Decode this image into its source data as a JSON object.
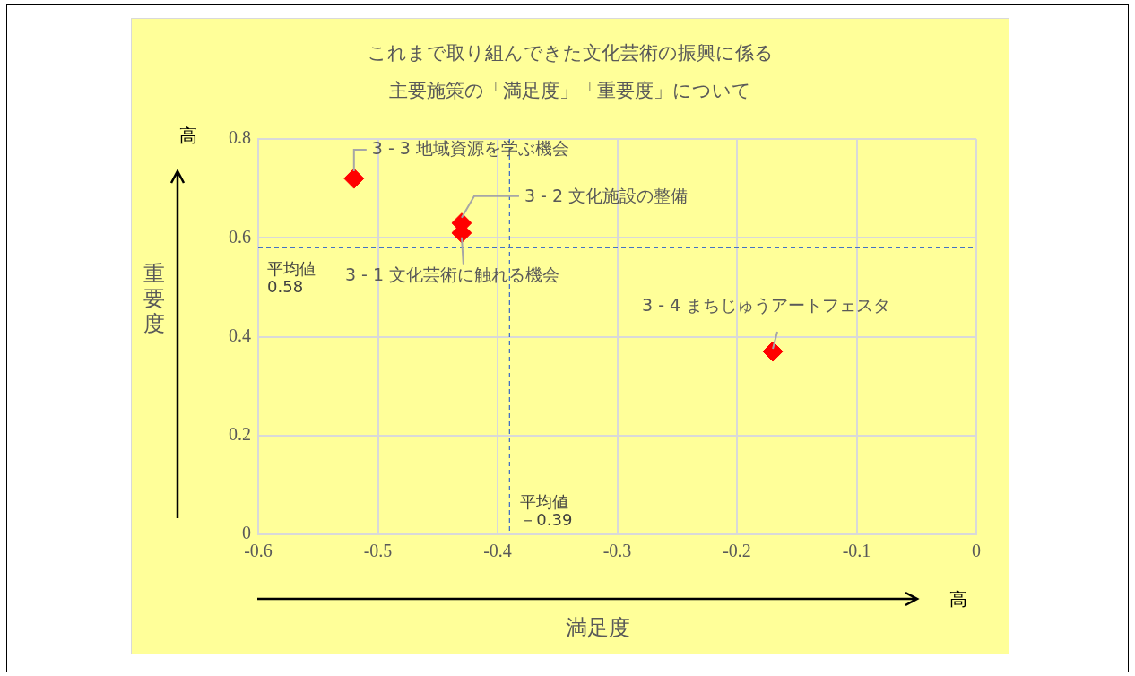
{
  "chart_data": {
    "type": "scatter",
    "title": "これまで取り組んできた文化芸術の振興に係る主要施策の「満足度」「重要度」について",
    "xlabel": "満足度",
    "ylabel": "重要度",
    "x": [
      -0.52,
      -0.43,
      -0.43,
      -0.17
    ],
    "series": [
      {
        "color": "#ff0000",
        "values": [
          0.72,
          0.63,
          0.61,
          0.37
        ]
      }
    ],
    "marker": "diamond",
    "grid": true,
    "legend": false,
    "xlim": [
      -0.6,
      0
    ],
    "xticks": [
      -0.6,
      -0.5,
      -0.4,
      -0.3,
      -0.2,
      -0.1,
      0
    ],
    "ylim": [
      0,
      0.8
    ],
    "yticks": [
      0,
      0.2,
      0.4,
      0.6,
      0.8
    ],
    "ref_lines": [
      {
        "axis": "y",
        "value": 0.58,
        "label": "平均値0.58",
        "color": "#4472c4",
        "line_style": "dashed"
      },
      {
        "axis": "x",
        "value": -0.39,
        "label": "平均値－0.39",
        "color": "#4472c4",
        "line_style": "dashed"
      }
    ],
    "annotations": [
      {
        "text": "3 - 3 地域資源を学ぶ機会",
        "x": -0.52,
        "y": 0.72
      },
      {
        "text": "3 - 2 文化施設の整備",
        "x": -0.43,
        "y": 0.63
      },
      {
        "text": "3 - 1 文化芸術に触れる機会",
        "x": -0.43,
        "y": 0.61
      },
      {
        "text": "3 - 4 まちじゅうアートフェスタ",
        "x": -0.17,
        "y": 0.37
      },
      "高",
      "高"
    ]
  }
}
